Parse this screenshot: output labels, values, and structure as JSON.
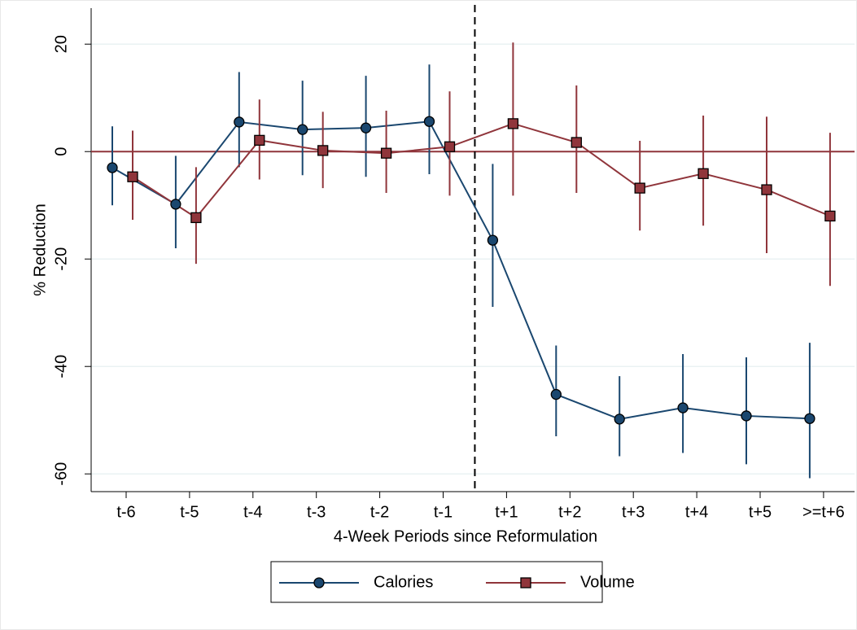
{
  "chart_data": {
    "type": "line",
    "x_label": "4-Week Periods since Reformulation",
    "y_label": "% Reduction",
    "categories": [
      "t-6",
      "t-5",
      "t-4",
      "t-3",
      "t-2",
      "t-1",
      "t+1",
      "t+2",
      "t+3",
      "t+4",
      "t+5",
      ">=t+6"
    ],
    "series": [
      {
        "name": "Calories",
        "color": "#1a476f",
        "marker": "circle",
        "values": [
          -3.0,
          -9.8,
          5.5,
          4.1,
          4.4,
          5.6,
          -16.5,
          -45.2,
          -49.8,
          -47.7,
          -49.2,
          -49.7
        ],
        "ci_low": [
          -10.0,
          -18.0,
          -2.9,
          -4.4,
          -4.7,
          -4.2,
          -28.9,
          -53.0,
          -56.7,
          -56.1,
          -58.2,
          -60.8
        ],
        "ci_high": [
          4.7,
          -0.8,
          14.8,
          13.2,
          14.1,
          16.2,
          -2.3,
          -36.1,
          -41.8,
          -37.7,
          -38.3,
          -35.6
        ]
      },
      {
        "name": "Volume",
        "color": "#90353b",
        "marker": "square",
        "values": [
          -4.7,
          -12.3,
          2.1,
          0.2,
          -0.3,
          0.9,
          5.2,
          1.7,
          -6.8,
          -4.1,
          -7.1,
          -12.0
        ],
        "ci_low": [
          -12.7,
          -20.9,
          -5.2,
          -6.8,
          -7.7,
          -8.2,
          -8.2,
          -7.7,
          -14.7,
          -13.8,
          -18.9,
          -25.0
        ],
        "ci_high": [
          3.9,
          -2.9,
          9.7,
          7.4,
          7.6,
          11.2,
          20.3,
          12.3,
          2.0,
          6.7,
          6.5,
          3.5
        ]
      }
    ],
    "reference_line": 0,
    "ylim": [
      -63.3,
      26.7
    ],
    "yticks": [
      -60,
      -40,
      -20,
      0,
      20
    ],
    "grid": true,
    "legend": "bottom"
  }
}
